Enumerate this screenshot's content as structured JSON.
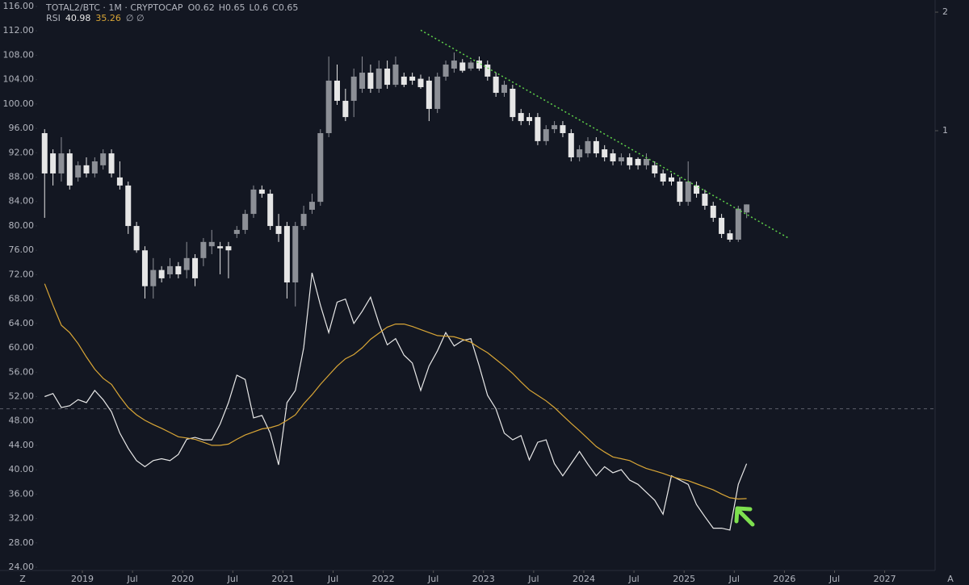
{
  "chart_data": {
    "type": "candlestick",
    "title": "TOTAL2/BTC · 1M · CRYPTOCAP",
    "ohlc_legend": [
      {
        "label": "O",
        "value": 0.62
      },
      {
        "label": "H",
        "value": 0.65
      },
      {
        "label": "L",
        "value": 0.6
      },
      {
        "label": "C",
        "value": 0.65
      }
    ],
    "x": [
      "2018-08",
      "2018-09",
      "2018-10",
      "2018-11",
      "2018-12",
      "2019-01",
      "2019-02",
      "2019-03",
      "2019-04",
      "2019-05",
      "2019-06",
      "2019-07",
      "2019-08",
      "2019-09",
      "2019-10",
      "2019-11",
      "2019-12",
      "2020-01",
      "2020-02",
      "2020-03",
      "2020-04",
      "2020-05",
      "2020-06",
      "2020-07",
      "2020-08",
      "2020-09",
      "2020-10",
      "2020-11",
      "2020-12",
      "2021-01",
      "2021-02",
      "2021-03",
      "2021-04",
      "2021-05",
      "2021-06",
      "2021-07",
      "2021-08",
      "2021-09",
      "2021-10",
      "2021-11",
      "2021-12",
      "2022-01",
      "2022-02",
      "2022-03",
      "2022-04",
      "2022-05",
      "2022-06",
      "2022-07",
      "2022-08",
      "2022-09",
      "2022-10",
      "2022-11",
      "2022-12",
      "2023-01",
      "2023-02",
      "2023-03",
      "2023-04",
      "2023-05",
      "2023-06",
      "2023-07",
      "2023-08",
      "2023-09",
      "2023-10",
      "2023-11",
      "2023-12",
      "2024-01",
      "2024-02",
      "2024-03",
      "2024-04",
      "2024-05",
      "2024-06",
      "2024-07",
      "2024-08",
      "2024-09",
      "2024-10",
      "2024-11",
      "2024-12",
      "2025-01",
      "2025-02",
      "2025-03",
      "2025-04",
      "2025-05",
      "2025-06",
      "2025-07",
      "2025-08"
    ],
    "open": [
      0.986,
      0.876,
      0.779,
      0.876,
      0.761,
      0.817,
      0.779,
      0.817,
      0.876,
      0.761,
      0.726,
      0.573,
      0.497,
      0.403,
      0.443,
      0.432,
      0.453,
      0.443,
      0.475,
      0.475,
      0.509,
      0.509,
      0.509,
      0.547,
      0.56,
      0.615,
      0.709,
      0.692,
      0.573,
      0.573,
      0.412,
      0.573,
      0.63,
      0.66,
      0.986,
      1.34,
      1.191,
      1.191,
      1.278,
      1.404,
      1.278,
      1.438,
      1.308,
      1.372,
      1.372,
      1.355,
      1.34,
      1.136,
      1.372,
      1.438,
      1.49,
      1.438,
      1.507,
      1.472,
      1.372,
      1.248,
      1.278,
      1.109,
      1.083,
      1.083,
      0.941,
      1.009,
      1.033,
      0.986,
      0.856,
      0.876,
      0.941,
      0.897,
      0.876,
      0.836,
      0.856,
      0.848,
      0.817,
      0.817,
      0.779,
      0.761,
      0.743,
      0.66,
      0.726,
      0.692,
      0.645,
      0.601,
      0.549,
      0.529,
      0.62
    ],
    "high": [
      1.009,
      0.897,
      0.963,
      0.897,
      0.836,
      0.856,
      0.856,
      0.897,
      0.897,
      0.836,
      0.743,
      0.587,
      0.509,
      0.475,
      0.453,
      0.475,
      0.464,
      0.522,
      0.486,
      0.534,
      0.56,
      0.522,
      0.522,
      0.573,
      0.63,
      0.726,
      0.726,
      0.709,
      0.615,
      0.587,
      0.587,
      0.645,
      0.692,
      1.009,
      1.543,
      1.472,
      1.278,
      1.438,
      1.543,
      1.472,
      1.507,
      1.507,
      1.543,
      1.404,
      1.404,
      1.388,
      1.372,
      1.404,
      1.507,
      1.58,
      1.52,
      1.507,
      1.543,
      1.507,
      1.404,
      1.34,
      1.308,
      1.136,
      1.109,
      1.109,
      1.033,
      1.058,
      1.058,
      1.009,
      0.919,
      0.963,
      0.963,
      0.919,
      0.897,
      0.876,
      0.876,
      0.856,
      0.876,
      0.836,
      0.797,
      0.779,
      0.761,
      0.836,
      0.743,
      0.709,
      0.66,
      0.615,
      0.56,
      0.645,
      0.65
    ],
    "low": [
      0.601,
      0.726,
      0.743,
      0.709,
      0.743,
      0.761,
      0.761,
      0.797,
      0.761,
      0.709,
      0.547,
      0.49,
      0.375,
      0.375,
      0.412,
      0.422,
      0.422,
      0.422,
      0.403,
      0.453,
      0.486,
      0.432,
      0.422,
      0.534,
      0.547,
      0.601,
      0.676,
      0.56,
      0.522,
      0.375,
      0.358,
      0.56,
      0.615,
      0.645,
      0.963,
      1.163,
      1.058,
      1.083,
      1.248,
      1.248,
      1.248,
      1.278,
      1.29,
      1.29,
      1.308,
      1.278,
      1.058,
      1.109,
      1.34,
      1.404,
      1.404,
      1.42,
      1.42,
      1.34,
      1.219,
      1.219,
      1.058,
      1.033,
      1.033,
      0.919,
      0.919,
      0.986,
      0.963,
      0.836,
      0.836,
      0.856,
      0.856,
      0.836,
      0.817,
      0.817,
      0.797,
      0.797,
      0.797,
      0.761,
      0.726,
      0.726,
      0.645,
      0.645,
      0.676,
      0.63,
      0.587,
      0.534,
      0.522,
      0.522,
      0.6
    ],
    "close": [
      0.779,
      0.779,
      0.876,
      0.726,
      0.817,
      0.779,
      0.836,
      0.876,
      0.779,
      0.726,
      0.573,
      0.497,
      0.403,
      0.443,
      0.422,
      0.453,
      0.432,
      0.475,
      0.422,
      0.522,
      0.522,
      0.503,
      0.497,
      0.56,
      0.615,
      0.709,
      0.692,
      0.573,
      0.547,
      0.412,
      0.573,
      0.615,
      0.66,
      0.986,
      1.34,
      1.191,
      1.083,
      1.372,
      1.404,
      1.278,
      1.438,
      1.308,
      1.472,
      1.308,
      1.34,
      1.29,
      1.136,
      1.372,
      1.472,
      1.507,
      1.42,
      1.49,
      1.438,
      1.372,
      1.248,
      1.308,
      1.083,
      1.058,
      1.058,
      0.941,
      1.009,
      1.033,
      0.986,
      0.856,
      0.897,
      0.941,
      0.876,
      0.856,
      0.836,
      0.856,
      0.817,
      0.817,
      0.848,
      0.779,
      0.743,
      0.743,
      0.66,
      0.743,
      0.692,
      0.645,
      0.601,
      0.547,
      0.529,
      0.634,
      0.65
    ],
    "up_color": "#8c8f96",
    "down_color": "#e6e6e6",
    "log_scale": true,
    "ylim": [
      0.0765,
      2.147
    ],
    "yticks": [
      1,
      2
    ],
    "xticks": [
      {
        "value": "2019-01",
        "label": "2019"
      },
      {
        "value": "2019-07",
        "label": "Jul"
      },
      {
        "value": "2020-01",
        "label": "2020"
      },
      {
        "value": "2020-07",
        "label": "Jul"
      },
      {
        "value": "2021-01",
        "label": "2021"
      },
      {
        "value": "2021-07",
        "label": "Jul"
      },
      {
        "value": "2022-01",
        "label": "2022"
      },
      {
        "value": "2022-07",
        "label": "Jul"
      },
      {
        "value": "2023-01",
        "label": "2023"
      },
      {
        "value": "2023-07",
        "label": "Jul"
      },
      {
        "value": "2024-01",
        "label": "2024"
      },
      {
        "value": "2024-07",
        "label": "Jul"
      },
      {
        "value": "2025-01",
        "label": "2025"
      },
      {
        "value": "2025-07",
        "label": "Jul"
      },
      {
        "value": "2026-01",
        "label": "2026"
      },
      {
        "value": "2026-07",
        "label": "Jul"
      },
      {
        "value": "2027-01",
        "label": "2027"
      }
    ],
    "trendline": {
      "x": [
        "2022-05",
        "2026-01"
      ],
      "values": [
        1.8,
        0.534
      ],
      "color": "#5fd34a"
    },
    "rsi": {
      "type": "line",
      "label": "RSI",
      "legend_suffix": "∅ ∅",
      "legend_values": [
        40.98,
        35.26
      ],
      "ylim": [
        23.47,
        117.06
      ],
      "yticks": [
        {
          "value": 116,
          "label": "116.00"
        },
        {
          "value": 112,
          "label": "112.00"
        },
        {
          "value": 108,
          "label": "108.00"
        },
        {
          "value": 104,
          "label": "104.00"
        },
        {
          "value": 100,
          "label": "100.00"
        },
        {
          "value": 96,
          "label": "96.00"
        },
        {
          "value": 92,
          "label": "92.00"
        },
        {
          "value": 88,
          "label": "88.00"
        },
        {
          "value": 84,
          "label": "84.00"
        },
        {
          "value": 80,
          "label": "80.00"
        },
        {
          "value": 76,
          "label": "76.00"
        },
        {
          "value": 72,
          "label": "72.00"
        },
        {
          "value": 68,
          "label": "68.00"
        },
        {
          "value": 64,
          "label": "64.00"
        },
        {
          "value": 60,
          "label": "60.00"
        },
        {
          "value": 56,
          "label": "56.00"
        },
        {
          "value": 52,
          "label": "52.00"
        },
        {
          "value": 48,
          "label": "48.00"
        },
        {
          "value": 44,
          "label": "44.00"
        },
        {
          "value": 40,
          "label": "40.00"
        },
        {
          "value": 36,
          "label": "36.00"
        },
        {
          "value": 32,
          "label": "32.00"
        },
        {
          "value": 28,
          "label": "28.00"
        },
        {
          "value": 24,
          "label": "24.00"
        }
      ],
      "midline": 50,
      "series": [
        {
          "color": "#e8e8e8",
          "values": [
            52,
            52.5,
            50.2,
            50.5,
            51.5,
            51,
            53,
            51.5,
            49.5,
            46,
            43.5,
            41.5,
            40.5,
            41.5,
            41.8,
            41.5,
            42.5,
            45,
            45.3,
            44.9,
            44.9,
            47.5,
            51,
            55.5,
            54.8,
            48.5,
            48.9,
            46,
            40.8,
            51,
            53,
            60,
            72.3,
            67,
            62.5,
            67.5,
            68,
            64,
            66,
            68.3,
            64,
            60.5,
            61.5,
            58.8,
            57.5,
            53,
            57,
            59.5,
            62.5,
            60.3,
            61.2,
            61.5,
            57,
            52.2,
            50,
            46,
            44.9,
            45.6,
            41.6,
            44.5,
            44.9,
            41,
            39,
            41,
            43,
            40.9,
            39,
            40.5,
            39.5,
            40,
            38.3,
            37.6,
            36.3,
            35,
            32.7,
            39,
            38.3,
            37.6,
            34.3,
            32.3,
            30.4,
            30.4,
            30.1,
            37.6,
            40.98
          ]
        },
        {
          "color": "#d9a636",
          "values": [
            70.5,
            67,
            63.7,
            62.5,
            60.7,
            58.5,
            56.5,
            55,
            54,
            52,
            50.2,
            49,
            48.1,
            47.4,
            46.8,
            46.1,
            45.4,
            45.2,
            45,
            44.5,
            44,
            44,
            44.2,
            45,
            45.7,
            46.2,
            46.7,
            46.9,
            47.3,
            48.1,
            49,
            50.8,
            52.3,
            54,
            55.5,
            57,
            58.2,
            58.9,
            60,
            61.4,
            62.4,
            63.4,
            63.9,
            63.9,
            63.5,
            63,
            62.5,
            62,
            61.9,
            61.8,
            61.4,
            60.9,
            60,
            59.2,
            58.1,
            57,
            55.8,
            54.4,
            53.1,
            52.2,
            51.3,
            50.2,
            48.9,
            47.6,
            46.4,
            45.1,
            43.8,
            42.9,
            42.1,
            41.8,
            41.5,
            40.8,
            40.2,
            39.8,
            39.4,
            38.9,
            38.5,
            38.2,
            37.7,
            37.2,
            36.7,
            36,
            35.4,
            35.2,
            35.26
          ]
        }
      ]
    },
    "corner_left": "Z",
    "corner_right": "A"
  }
}
